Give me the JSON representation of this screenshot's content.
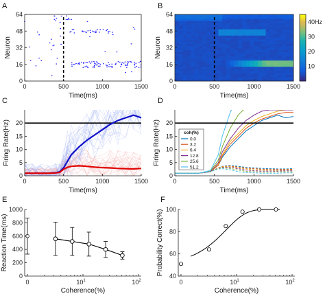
{
  "chart_data": [
    {
      "panel": "A",
      "type": "scatter",
      "xlabel": "Time(ms)",
      "ylabel": "Neuron",
      "xlim": [
        0,
        1500
      ],
      "ylim": [
        0,
        64
      ],
      "xticks": [
        "0",
        "500",
        "1000",
        "1500"
      ],
      "yticks": [
        "0",
        "16",
        "32",
        "48",
        "64"
      ],
      "stimulus_line_x": 500,
      "colors": {
        "points": "#1a1aff",
        "line": "#000000"
      }
    },
    {
      "panel": "B",
      "type": "heatmap",
      "xlabel": "Time(ms)",
      "ylabel": "Neuron",
      "xlim": [
        0,
        1500
      ],
      "ylim": [
        0,
        64
      ],
      "xticks": [
        "0",
        "500",
        "1000",
        "1500"
      ],
      "yticks": [
        "0",
        "16",
        "32",
        "48",
        "64"
      ],
      "stimulus_line_x": 500,
      "colorbar": {
        "unit": "40Hz",
        "ticks": [
          "10",
          "20",
          "30"
        ],
        "range": [
          0,
          45
        ]
      }
    },
    {
      "panel": "C",
      "type": "line",
      "xlabel": "Time(ms)",
      "ylabel": "Firing Rate(Hz)",
      "xlim": [
        0,
        1500
      ],
      "ylim": [
        0,
        25
      ],
      "xticks": [
        "0",
        "500",
        "1000",
        "1500"
      ],
      "yticks": [
        "0",
        "5",
        "10",
        "15",
        "20"
      ],
      "threshold": 20,
      "x": [
        0,
        100,
        200,
        300,
        400,
        450,
        500,
        550,
        600,
        700,
        800,
        900,
        1000,
        1100,
        1200,
        1300,
        1400,
        1500
      ],
      "series": [
        {
          "color": "#1010c8",
          "values": [
            1,
            1,
            1,
            1,
            1.2,
            1.5,
            3,
            5.5,
            8,
            11,
            13.5,
            15.5,
            17.5,
            19.5,
            21,
            22,
            23,
            22
          ]
        },
        {
          "color": "#e00000",
          "values": [
            1,
            1,
            1,
            1,
            1.1,
            1.3,
            2.5,
            3.2,
            3.6,
            3.8,
            3.6,
            3.3,
            3.1,
            3.0,
            2.8,
            2.7,
            2.6,
            2.8
          ]
        }
      ]
    },
    {
      "panel": "D",
      "type": "line",
      "xlabel": "Time(ms)",
      "ylabel": "Firing Rate(Hz)",
      "xlim": [
        0,
        1500
      ],
      "ylim": [
        0,
        25
      ],
      "xticks": [
        "0",
        "500",
        "1000",
        "1500"
      ],
      "yticks": [
        "0",
        "5",
        "10",
        "15",
        "20"
      ],
      "threshold": 20,
      "legend_title": "coh(%)",
      "legend": [
        {
          "label": "0.0",
          "color": "#0072bd"
        },
        {
          "label": "3.2",
          "color": "#d95319"
        },
        {
          "label": "6.4",
          "color": "#edb120"
        },
        {
          "label": "12.8",
          "color": "#7e2f8e"
        },
        {
          "label": "25.6",
          "color": "#77ac30"
        },
        {
          "label": "51.2",
          "color": "#4dbeee"
        }
      ],
      "x": [
        0,
        300,
        450,
        550,
        600,
        700,
        800,
        900,
        1000,
        1100,
        1200,
        1300,
        1400,
        1500
      ],
      "winners": [
        [
          1,
          1,
          1.5,
          4,
          7,
          11,
          14,
          17,
          19,
          21,
          22,
          23,
          22,
          22.5
        ],
        [
          1,
          1,
          1.5,
          4,
          7.5,
          12,
          15,
          18,
          20,
          21.5,
          22.5,
          23.5,
          24,
          24
        ],
        [
          1,
          1,
          1.5,
          4.5,
          8,
          13,
          16,
          19,
          21,
          22.5,
          23.5,
          24.5,
          25,
          25
        ],
        [
          1,
          1,
          1.5,
          5,
          9,
          14,
          18,
          21,
          23,
          24.5,
          25,
          25,
          25,
          25
        ],
        [
          1,
          1,
          1.8,
          6,
          11,
          18,
          23,
          26,
          26,
          26,
          26,
          26,
          26,
          26
        ],
        [
          1,
          1,
          2,
          8,
          15,
          24,
          30,
          30,
          30,
          30,
          30,
          30,
          30,
          30
        ]
      ],
      "losers": [
        [
          1,
          1,
          1.5,
          3,
          3.6,
          3.9,
          3.6,
          3.2,
          3.0,
          2.8,
          2.7,
          2.6,
          2.6,
          2.7
        ],
        [
          1,
          1,
          1.5,
          3,
          3.5,
          3.7,
          3.3,
          2.9,
          2.7,
          2.5,
          2.4,
          2.4,
          2.4,
          2.5
        ],
        [
          1,
          1,
          1.5,
          3,
          3.4,
          3.5,
          3.0,
          2.6,
          2.3,
          2.2,
          2.1,
          2.1,
          2.2,
          2.2
        ],
        [
          1,
          1,
          1.5,
          2.9,
          3.2,
          3.2,
          2.7,
          2.2,
          1.9,
          1.8,
          1.8,
          1.8,
          1.9,
          1.9
        ],
        [
          1,
          1,
          1.5,
          2.8,
          3.0,
          2.8,
          2.2,
          1.7,
          1.5,
          1.4,
          1.4,
          1.5,
          1.5,
          1.5
        ],
        [
          1,
          1,
          1.5,
          2.6,
          2.7,
          2.3,
          1.6,
          1.2,
          1.1,
          1.0,
          1.0,
          1.0,
          1.1,
          1.1
        ]
      ]
    },
    {
      "panel": "E",
      "type": "line",
      "xlabel": "Coherence(%)",
      "ylabel": "Reaction Time(ms)",
      "xscale": "log",
      "ylim": [
        0,
        1000
      ],
      "yticks": [
        "0",
        "200",
        "400",
        "600",
        "800",
        "1000"
      ],
      "xticks": [
        "0",
        "10^1",
        "10^2"
      ],
      "zero_point": {
        "value": 600,
        "err": 270
      },
      "x": [
        3.2,
        6.4,
        12.8,
        25.6,
        51.2
      ],
      "values": [
        560,
        520,
        480,
        400,
        310
      ],
      "err": [
        250,
        210,
        180,
        120,
        55
      ]
    },
    {
      "panel": "F",
      "type": "scatter",
      "xlabel": "Coherence(%)",
      "ylabel": "Probability Correct(%)",
      "xscale": "log",
      "ylim": [
        40,
        100
      ],
      "yticks": [
        "40",
        "60",
        "80",
        "100"
      ],
      "xticks": [
        "0",
        "10^1",
        "10^2"
      ],
      "zero_point": {
        "value": 51
      },
      "x": [
        3.2,
        6.4,
        12.8,
        25.6,
        51.2
      ],
      "values": [
        64,
        85,
        98,
        100,
        100
      ]
    }
  ]
}
